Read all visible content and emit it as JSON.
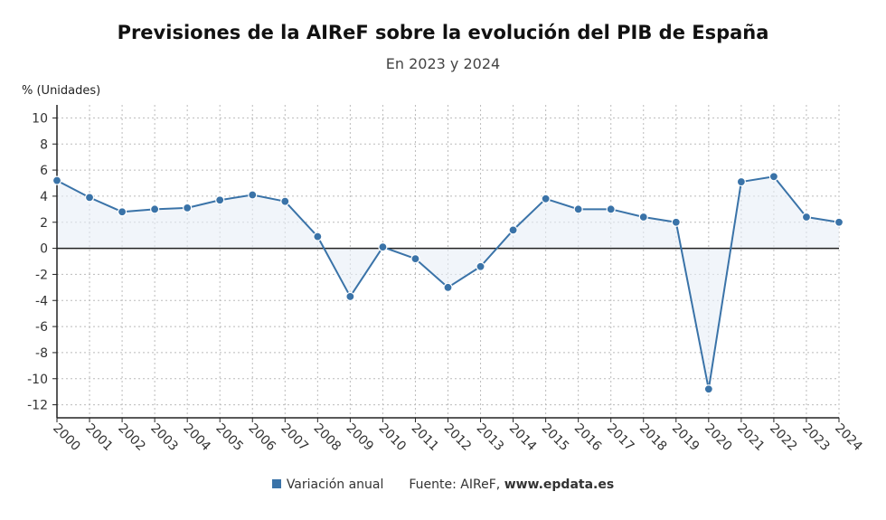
{
  "colors": {
    "series": "#3a73a8",
    "fill": "#e8eef7",
    "grid": "#bbbbbb",
    "axis": "#222222"
  },
  "chart_data": {
    "type": "line",
    "title": "Previsiones de la AIReF sobre la evolución del PIB de España",
    "subtitle": "En 2023 y 2024",
    "ylabel": "% (Unidades)",
    "xlabel": "",
    "ylim": [
      -13,
      11
    ],
    "yticks": [
      10,
      8,
      6,
      4,
      2,
      0,
      -2,
      -4,
      -6,
      -8,
      -10,
      -12
    ],
    "grid": true,
    "categories": [
      "2000",
      "2001",
      "2002",
      "2003",
      "2004",
      "2005",
      "2006",
      "2007",
      "2008",
      "2009",
      "2010",
      "2011",
      "2012",
      "2013",
      "2014",
      "2015",
      "2016",
      "2017",
      "2018",
      "2019",
      "2020",
      "2021",
      "2022",
      "2023",
      "2024"
    ],
    "series": [
      {
        "name": "Variación anual",
        "values": [
          5.2,
          3.9,
          2.8,
          3.0,
          3.1,
          3.7,
          4.1,
          3.6,
          0.9,
          -3.7,
          0.1,
          -0.8,
          -3.0,
          -1.4,
          1.4,
          3.8,
          3.0,
          3.0,
          2.4,
          2.0,
          -10.8,
          5.1,
          5.5,
          2.4,
          2.0
        ]
      }
    ],
    "legend_position": "bottom"
  },
  "footer": {
    "legend_label": "Variación anual",
    "source_prefix": "Fuente: AIReF, ",
    "source_site": "www.epdata.es"
  }
}
